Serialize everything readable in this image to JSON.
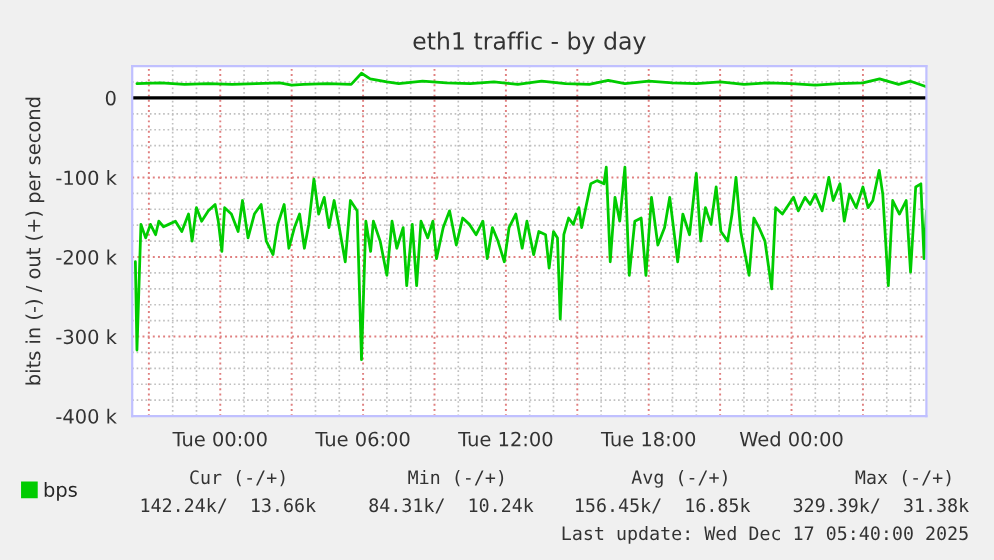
{
  "chart_data": {
    "type": "line",
    "title": "eth1 traffic - by day",
    "ylabel": "bits in (-) / out (+) per second",
    "xlim": [
      "2025-12-15T20:18",
      "2025-12-17T05:40"
    ],
    "ylim": [
      -400,
      40
    ],
    "xticks": [
      {
        "value": "2025-12-15T21:00",
        "label": null
      },
      {
        "value": "2025-12-16T00:00",
        "label": "Tue 00:00"
      },
      {
        "value": "2025-12-16T03:00",
        "label": null
      },
      {
        "value": "2025-12-16T06:00",
        "label": "Tue 06:00"
      },
      {
        "value": "2025-12-16T09:00",
        "label": null
      },
      {
        "value": "2025-12-16T12:00",
        "label": "Tue 12:00"
      },
      {
        "value": "2025-12-16T15:00",
        "label": null
      },
      {
        "value": "2025-12-16T18:00",
        "label": "Tue 18:00"
      },
      {
        "value": "2025-12-16T21:00",
        "label": null
      },
      {
        "value": "2025-12-17T00:00",
        "label": "Wed 00:00"
      },
      {
        "value": "2025-12-17T03:00",
        "label": null
      }
    ],
    "yticks": [
      {
        "value": -400,
        "label": "-400 k"
      },
      {
        "value": -300,
        "label": "-300 k"
      },
      {
        "value": -200,
        "label": "-200 k"
      },
      {
        "value": -100,
        "label": "-100 k"
      },
      0
    ],
    "grid": true,
    "legend": "bottom left",
    "marker": "none",
    "line_style": "solid",
    "ref_lines": [
      {
        "axis": "y",
        "value": 0,
        "color": "#000000"
      }
    ],
    "series": [
      {
        "name": "bps",
        "color": "#00cc00",
        "x": [
          "2025-12-15T20:26",
          "2025-12-15T20:30",
          "2025-12-15T20:40",
          "2025-12-15T20:52",
          "2025-12-15T21:04",
          "2025-12-15T21:17",
          "2025-12-15T21:25",
          "2025-12-15T21:37",
          "2025-12-15T21:50",
          "2025-12-15T22:07",
          "2025-12-15T22:23",
          "2025-12-15T22:40",
          "2025-12-15T22:49",
          "2025-12-15T23:00",
          "2025-12-15T23:13",
          "2025-12-15T23:30",
          "2025-12-15T23:47",
          "2025-12-15T23:55",
          "2025-12-16T00:04",
          "2025-12-16T00:11",
          "2025-12-16T00:28",
          "2025-12-16T00:45",
          "2025-12-16T00:56",
          "2025-12-16T01:10",
          "2025-12-16T01:26",
          "2025-12-16T01:43",
          "2025-12-16T01:56",
          "2025-12-16T02:13",
          "2025-12-16T02:25",
          "2025-12-16T02:41",
          "2025-12-16T02:53",
          "2025-12-16T03:07",
          "2025-12-16T03:20",
          "2025-12-16T03:32",
          "2025-12-16T03:43",
          "2025-12-16T03:56",
          "2025-12-16T04:08",
          "2025-12-16T04:22",
          "2025-12-16T04:34",
          "2025-12-16T04:47",
          "2025-12-16T05:00",
          "2025-12-16T05:15",
          "2025-12-16T05:28",
          "2025-12-16T05:45",
          "2025-12-16T05:56",
          "2025-12-16T06:07",
          "2025-12-16T06:19",
          "2025-12-16T06:26",
          "2025-12-16T06:43",
          "2025-12-16T07:00",
          "2025-12-16T07:13",
          "2025-12-16T07:25",
          "2025-12-16T07:41",
          "2025-12-16T07:50",
          "2025-12-16T08:04",
          "2025-12-16T08:15",
          "2025-12-16T08:26",
          "2025-12-16T08:43",
          "2025-12-16T08:56",
          "2025-12-16T09:05",
          "2025-12-16T09:22",
          "2025-12-16T09:38",
          "2025-12-16T09:55",
          "2025-12-16T10:11",
          "2025-12-16T10:28",
          "2025-12-16T10:45",
          "2025-12-16T11:02",
          "2025-12-16T11:13",
          "2025-12-16T11:26",
          "2025-12-16T11:40",
          "2025-12-16T11:56",
          "2025-12-16T12:08",
          "2025-12-16T12:25",
          "2025-12-16T12:41",
          "2025-12-16T12:53",
          "2025-12-16T13:10",
          "2025-12-16T13:23",
          "2025-12-16T13:40",
          "2025-12-16T13:49",
          "2025-12-16T14:00",
          "2025-12-16T14:10",
          "2025-12-16T14:17",
          "2025-12-16T14:26",
          "2025-12-16T14:38",
          "2025-12-16T14:50",
          "2025-12-16T15:04",
          "2025-12-16T15:11",
          "2025-12-16T15:23",
          "2025-12-16T15:34",
          "2025-12-16T15:50",
          "2025-12-16T16:07",
          "2025-12-16T16:13",
          "2025-12-16T16:23",
          "2025-12-16T16:35",
          "2025-12-16T16:47",
          "2025-12-16T17:00",
          "2025-12-16T17:11",
          "2025-12-16T17:25",
          "2025-12-16T17:41",
          "2025-12-16T17:53",
          "2025-12-16T18:07",
          "2025-12-16T18:23",
          "2025-12-16T18:40",
          "2025-12-16T18:53",
          "2025-12-16T19:13",
          "2025-12-16T19:26",
          "2025-12-16T19:43",
          "2025-12-16T20:00",
          "2025-12-16T20:11",
          "2025-12-16T20:23",
          "2025-12-16T20:37",
          "2025-12-16T20:50",
          "2025-12-16T21:02",
          "2025-12-16T21:19",
          "2025-12-16T21:30",
          "2025-12-16T21:40",
          "2025-12-16T21:52",
          "2025-12-16T22:13",
          "2025-12-16T22:25",
          "2025-12-16T22:38",
          "2025-12-16T22:53",
          "2025-12-16T23:10",
          "2025-12-16T23:20",
          "2025-12-16T23:37",
          "2025-12-16T23:53",
          "2025-12-17T00:05",
          "2025-12-17T00:17",
          "2025-12-17T00:34",
          "2025-12-17T00:47",
          "2025-12-17T01:00",
          "2025-12-17T01:17",
          "2025-12-17T01:34",
          "2025-12-17T01:45",
          "2025-12-17T02:02",
          "2025-12-17T02:13",
          "2025-12-17T02:26",
          "2025-12-17T02:43",
          "2025-12-17T03:00",
          "2025-12-17T03:13",
          "2025-12-17T03:25",
          "2025-12-17T03:41",
          "2025-12-17T03:50",
          "2025-12-17T04:04",
          "2025-12-17T04:15",
          "2025-12-17T04:32",
          "2025-12-17T04:49",
          "2025-12-17T05:00",
          "2025-12-17T05:13",
          "2025-12-17T05:26",
          "2025-12-17T05:34",
          "2025-12-17T05:40"
        ],
        "values": [
          -206,
          -317,
          -159,
          -176,
          -159,
          -172,
          -155,
          -162,
          -159,
          -155,
          -168,
          -146,
          -180,
          -138,
          -155,
          -142,
          -134,
          -155,
          -193,
          -138,
          -146,
          -168,
          -129,
          -176,
          -146,
          -134,
          -180,
          -197,
          -159,
          -134,
          -189,
          -163,
          -146,
          -189,
          -159,
          -102,
          -146,
          -125,
          -163,
          -129,
          -163,
          -206,
          -129,
          -142,
          -329,
          -155,
          -193,
          -155,
          -180,
          -223,
          -155,
          -189,
          -163,
          -236,
          -159,
          -236,
          -155,
          -176,
          -155,
          -202,
          -163,
          -142,
          -185,
          -151,
          -159,
          -172,
          -155,
          -202,
          -163,
          -180,
          -206,
          -163,
          -146,
          -189,
          -155,
          -197,
          -168,
          -172,
          -214,
          -168,
          -176,
          -278,
          -172,
          -151,
          -159,
          -138,
          -163,
          -134,
          -108,
          -104,
          -108,
          -87,
          -206,
          -125,
          -155,
          -87,
          -223,
          -155,
          -151,
          -223,
          -125,
          -185,
          -163,
          -125,
          -206,
          -146,
          -172,
          -95,
          -180,
          -138,
          -159,
          -112,
          -168,
          -180,
          -146,
          -100,
          -168,
          -223,
          -151,
          -163,
          -180,
          -240,
          -138,
          -146,
          -134,
          -125,
          -142,
          -125,
          -134,
          -121,
          -142,
          -100,
          -129,
          -108,
          -155,
          -121,
          -138,
          -112,
          -138,
          -129,
          -91,
          -121,
          -236,
          -129,
          -146,
          -129,
          -219,
          -112,
          -108,
          -202,
          -142
        ]
      },
      {
        "color": "#00cc00",
        "x": [
          "2025-12-15T20:30",
          "2025-12-15T21:30",
          "2025-12-15T22:30",
          "2025-12-15T23:30",
          "2025-12-16T00:30",
          "2025-12-16T01:30",
          "2025-12-16T02:30",
          "2025-12-16T03:00",
          "2025-12-16T03:30",
          "2025-12-16T04:30",
          "2025-12-16T05:30",
          "2025-12-16T05:56",
          "2025-12-16T06:18",
          "2025-12-16T07:00",
          "2025-12-16T07:30",
          "2025-12-16T08:30",
          "2025-12-16T09:30",
          "2025-12-16T10:30",
          "2025-12-16T11:30",
          "2025-12-16T12:30",
          "2025-12-16T13:30",
          "2025-12-16T14:30",
          "2025-12-16T15:30",
          "2025-12-16T16:18",
          "2025-12-16T17:00",
          "2025-12-16T18:00",
          "2025-12-16T19:00",
          "2025-12-16T20:00",
          "2025-12-16T21:00",
          "2025-12-16T22:00",
          "2025-12-16T23:00",
          "2025-12-17T00:00",
          "2025-12-17T01:00",
          "2025-12-17T02:00",
          "2025-12-17T03:00",
          "2025-12-17T03:42",
          "2025-12-17T04:30",
          "2025-12-17T05:00",
          "2025-12-17T05:40"
        ],
        "values": [
          18,
          19,
          17,
          18,
          17,
          18,
          19,
          16,
          17,
          18,
          17,
          31,
          24,
          20,
          18,
          21,
          19,
          18,
          20,
          17,
          21,
          18,
          17,
          22,
          18,
          21,
          19,
          18,
          20,
          17,
          19,
          18,
          16,
          18,
          19,
          24,
          17,
          21,
          14
        ]
      }
    ],
    "annotations": [
      "Cur (-/+)",
      "Min (-/+)",
      "Avg (-/+)",
      "Max (-/+)",
      "142.24k/  13.66k",
      "84.31k/  10.24k",
      "156.45k/  16.85k",
      "329.39k/  31.38k",
      "Last update: Wed Dec 17 05:40:00 2025"
    ]
  }
}
